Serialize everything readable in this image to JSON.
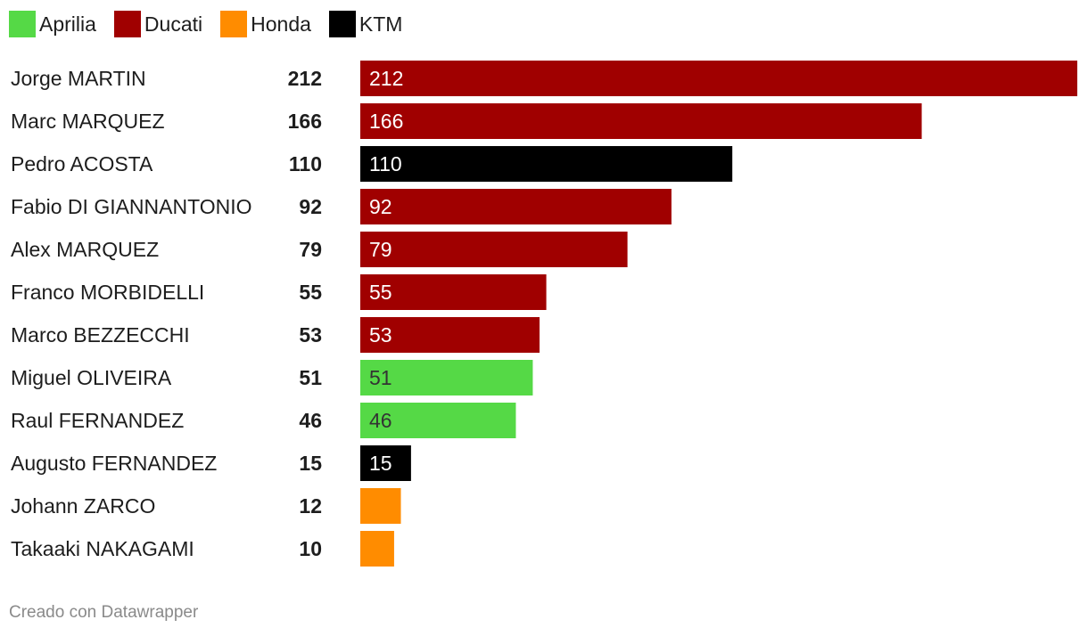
{
  "chart_data": {
    "type": "bar",
    "orientation": "horizontal",
    "categories": [
      "Jorge MARTIN",
      "Marc MARQUEZ",
      "Pedro ACOSTA",
      "Fabio DI GIANNANTONIO",
      "Alex MARQUEZ",
      "Franco MORBIDELLI",
      "Marco BEZZECCHI",
      "Miguel OLIVEIRA",
      "Raul FERNANDEZ",
      "Augusto FERNANDEZ",
      "Johann ZARCO",
      "Takaaki NAKAGAMI"
    ],
    "values": [
      212,
      166,
      110,
      92,
      79,
      55,
      53,
      51,
      46,
      15,
      12,
      10
    ],
    "bar_labels": [
      "212",
      "166",
      "110",
      "92",
      "79",
      "55",
      "53",
      "51",
      "46",
      "15",
      "",
      ""
    ],
    "groups": [
      "Ducati",
      "Ducati",
      "KTM",
      "Ducati",
      "Ducati",
      "Ducati",
      "Ducati",
      "Aprilia",
      "Aprilia",
      "KTM",
      "Honda",
      "Honda"
    ],
    "legend": [
      {
        "name": "Aprilia",
        "color": "#55d946"
      },
      {
        "name": "Ducati",
        "color": "#a00000"
      },
      {
        "name": "Honda",
        "color": "#ff8c00"
      },
      {
        "name": "KTM",
        "color": "#000000"
      }
    ],
    "legend_position": "top-left",
    "xlim": [
      0,
      212
    ],
    "grid": false,
    "title": "",
    "xlabel": "",
    "ylabel": ""
  },
  "label_colors": {
    "Aprilia": "#333333",
    "Ducati": "#ffffff",
    "Honda": "#ffffff",
    "KTM": "#ffffff"
  },
  "credit": "Creado con Datawrapper"
}
